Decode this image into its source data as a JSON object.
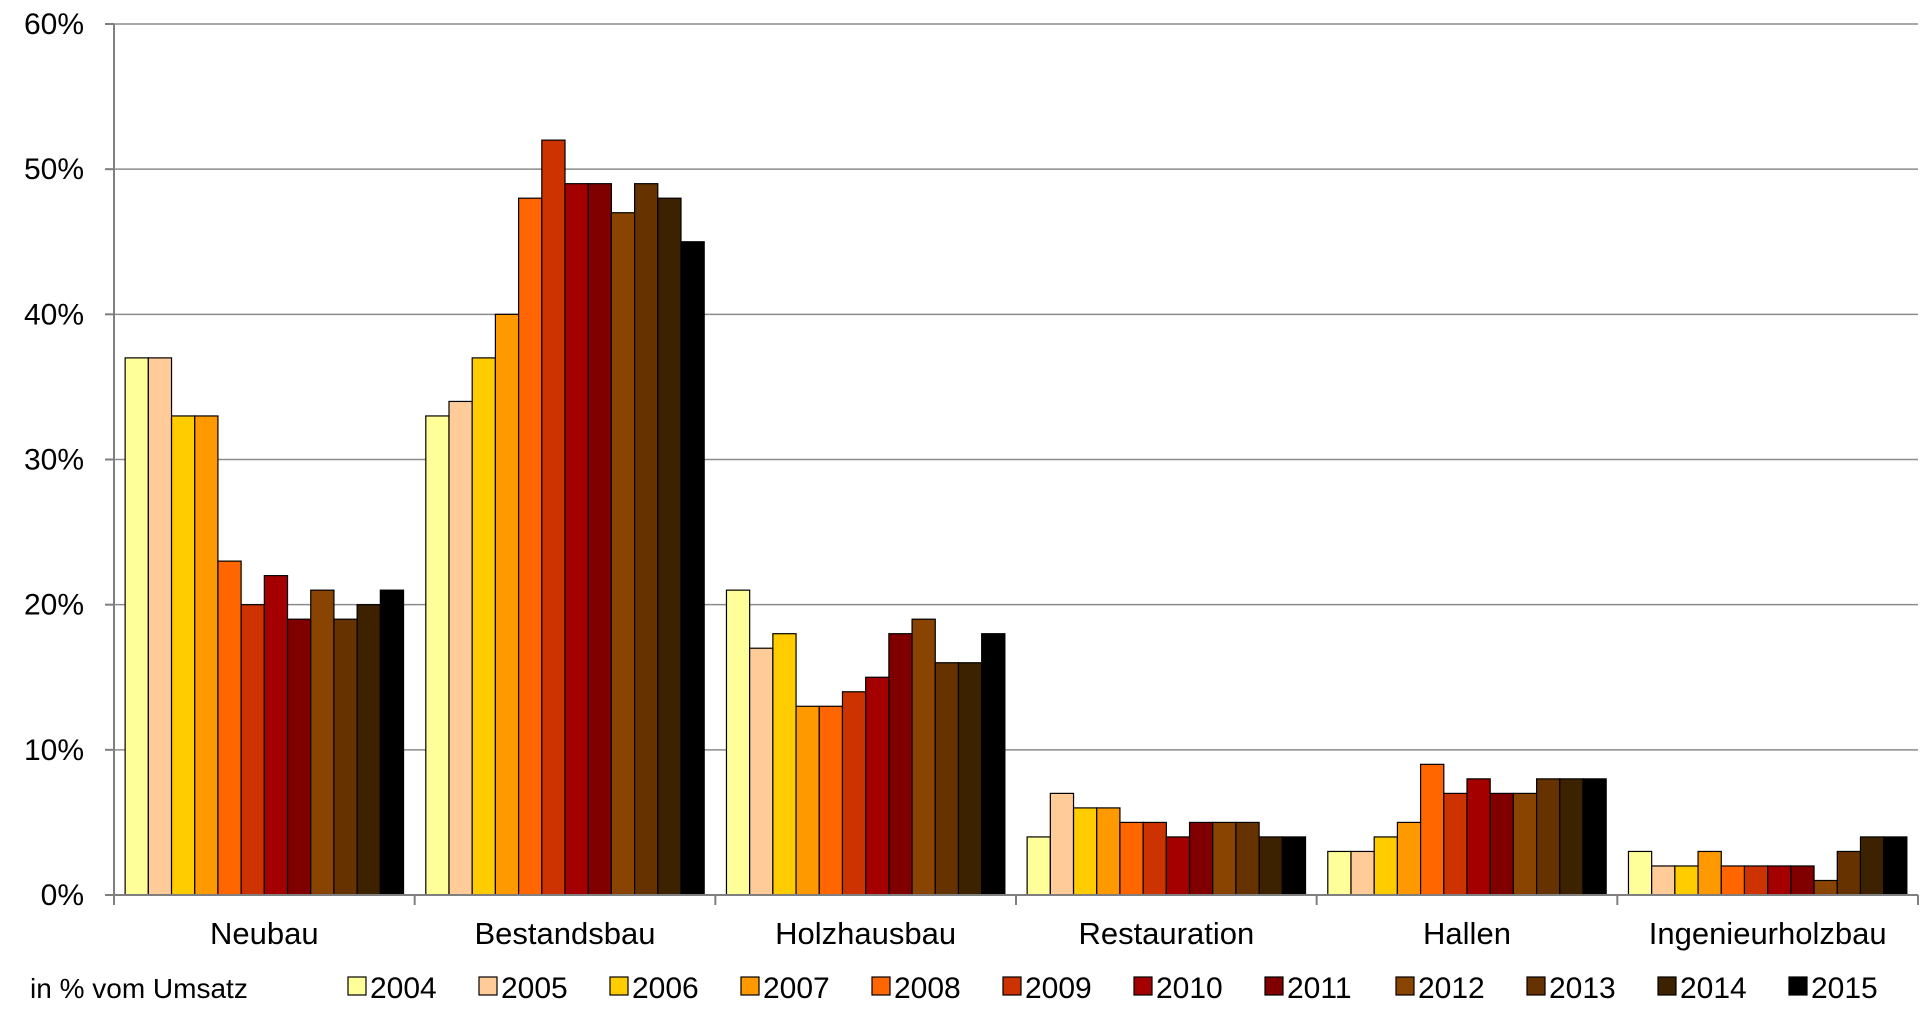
{
  "chart_data": {
    "type": "bar",
    "title": "",
    "xlabel": "",
    "ylabel": "",
    "note": "in % vom Umsatz",
    "ylim": [
      0,
      60
    ],
    "y_ticks": [
      0,
      10,
      20,
      30,
      40,
      50,
      60
    ],
    "y_tick_labels": [
      "0%",
      "10%",
      "20%",
      "30%",
      "40%",
      "50%",
      "60%"
    ],
    "grid": true,
    "legend_position": "bottom",
    "categories": [
      "Neubau",
      "Bestandsbau",
      "Holzhausbau",
      "Restauration",
      "Hallen",
      "Ingenieurholzbau"
    ],
    "series": [
      {
        "name": "2004",
        "color": "#FFFF99",
        "values": [
          37,
          33,
          21,
          4,
          3,
          3
        ]
      },
      {
        "name": "2005",
        "color": "#FFCC99",
        "values": [
          37,
          34,
          17,
          7,
          3,
          2
        ]
      },
      {
        "name": "2006",
        "color": "#FFCC00",
        "values": [
          33,
          37,
          18,
          6,
          4,
          2
        ]
      },
      {
        "name": "2007",
        "color": "#FF9900",
        "values": [
          33,
          40,
          13,
          6,
          5,
          3
        ]
      },
      {
        "name": "2008",
        "color": "#FF6600",
        "values": [
          23,
          48,
          13,
          5,
          9,
          2
        ]
      },
      {
        "name": "2009",
        "color": "#CC3300",
        "values": [
          20,
          52,
          14,
          5,
          7,
          2
        ]
      },
      {
        "name": "2010",
        "color": "#A50000",
        "values": [
          22,
          49,
          15,
          4,
          8,
          2
        ]
      },
      {
        "name": "2011",
        "color": "#800000",
        "values": [
          19,
          49,
          18,
          5,
          7,
          2
        ]
      },
      {
        "name": "2012",
        "color": "#884400",
        "values": [
          21,
          47,
          19,
          5,
          7,
          1
        ]
      },
      {
        "name": "2013",
        "color": "#663300",
        "values": [
          19,
          49,
          16,
          5,
          8,
          3
        ]
      },
      {
        "name": "2014",
        "color": "#3D2200",
        "values": [
          20,
          48,
          16,
          4,
          8,
          4
        ]
      },
      {
        "name": "2015",
        "color": "#000000",
        "values": [
          21,
          45,
          18,
          4,
          8,
          4
        ]
      }
    ]
  }
}
